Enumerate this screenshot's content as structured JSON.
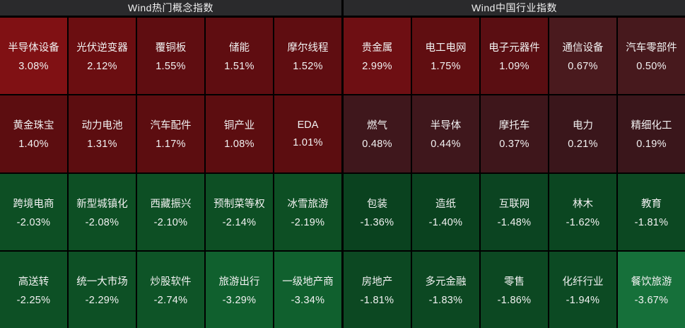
{
  "panels": {
    "left_title": "Wind热门概念指数",
    "right_title": "Wind中国行业指数"
  },
  "colors": {
    "background": "#000000",
    "header_bg": "#2a2a2c",
    "header_text": "#f0f0f0",
    "cell_text": "#f2f2f2",
    "gain_bright": "#801114",
    "loss_bright": "#16703a"
  },
  "chart_data": [
    {
      "type": "heatmap",
      "title": "Wind热门概念指数",
      "value_format": "percent_change",
      "rows": [
        [
          {
            "name": "半导体设备",
            "pct": "3.08%",
            "value": 3.08,
            "color": "#801114"
          },
          {
            "name": "光伏逆变器",
            "pct": "2.12%",
            "value": 2.12,
            "color": "#6b0e11"
          },
          {
            "name": "覆铜板",
            "pct": "1.55%",
            "value": 1.55,
            "color": "#5f0d11"
          },
          {
            "name": "储能",
            "pct": "1.51%",
            "value": 1.51,
            "color": "#5f0d11"
          },
          {
            "name": "摩尔线程",
            "pct": "1.52%",
            "value": 1.52,
            "color": "#5f0d11"
          }
        ],
        [
          {
            "name": "黄金珠宝",
            "pct": "1.40%",
            "value": 1.4,
            "color": "#5c0d10"
          },
          {
            "name": "动力电池",
            "pct": "1.31%",
            "value": 1.31,
            "color": "#5c0d10"
          },
          {
            "name": "汽车配件",
            "pct": "1.17%",
            "value": 1.17,
            "color": "#5c0d10"
          },
          {
            "name": "铜产业",
            "pct": "1.08%",
            "value": 1.08,
            "color": "#5c0d10"
          },
          {
            "name": "EDA",
            "pct": "1.01%",
            "value": 1.01,
            "color": "#5c0d10"
          }
        ],
        [
          {
            "name": "跨境电商",
            "pct": "-2.03%",
            "value": -2.03,
            "color": "#0d4f24"
          },
          {
            "name": "新型城镇化",
            "pct": "-2.08%",
            "value": -2.08,
            "color": "#0d4f24"
          },
          {
            "name": "西藏振兴",
            "pct": "-2.10%",
            "value": -2.1,
            "color": "#0d4f24"
          },
          {
            "name": "预制菜等权",
            "pct": "-2.14%",
            "value": -2.14,
            "color": "#0d4f24"
          },
          {
            "name": "冰雪旅游",
            "pct": "-2.19%",
            "value": -2.19,
            "color": "#0d4f24"
          }
        ],
        [
          {
            "name": "高送转",
            "pct": "-2.25%",
            "value": -2.25,
            "color": "#0d5025"
          },
          {
            "name": "统一大市场",
            "pct": "-2.29%",
            "value": -2.29,
            "color": "#0d5025"
          },
          {
            "name": "炒股软件",
            "pct": "-2.74%",
            "value": -2.74,
            "color": "#0e5427"
          },
          {
            "name": "旅游出行",
            "pct": "-3.29%",
            "value": -3.29,
            "color": "#10602e"
          },
          {
            "name": "一级地产商",
            "pct": "-3.34%",
            "value": -3.34,
            "color": "#10602e"
          }
        ]
      ]
    },
    {
      "type": "heatmap",
      "title": "Wind中国行业指数",
      "value_format": "percent_change",
      "rows": [
        [
          {
            "name": "贵金属",
            "pct": "2.99%",
            "value": 2.99,
            "color": "#6e0f13"
          },
          {
            "name": "电工电网",
            "pct": "1.75%",
            "value": 1.75,
            "color": "#600e11"
          },
          {
            "name": "电子元器件",
            "pct": "1.09%",
            "value": 1.09,
            "color": "#5a0e12"
          },
          {
            "name": "通信设备",
            "pct": "0.67%",
            "value": 0.67,
            "color": "#4a1a1e"
          },
          {
            "name": "汽车零部件",
            "pct": "0.50%",
            "value": 0.5,
            "color": "#47191d"
          }
        ],
        [
          {
            "name": "燃气",
            "pct": "0.48%",
            "value": 0.48,
            "color": "#3f171c"
          },
          {
            "name": "半导体",
            "pct": "0.44%",
            "value": 0.44,
            "color": "#3f171c"
          },
          {
            "name": "摩托车",
            "pct": "0.37%",
            "value": 0.37,
            "color": "#3e161b"
          },
          {
            "name": "电力",
            "pct": "0.21%",
            "value": 0.21,
            "color": "#3a161b"
          },
          {
            "name": "精细化工",
            "pct": "0.19%",
            "value": 0.19,
            "color": "#3a161b"
          }
        ],
        [
          {
            "name": "包装",
            "pct": "-1.36%",
            "value": -1.36,
            "color": "#0a421f"
          },
          {
            "name": "造纸",
            "pct": "-1.40%",
            "value": -1.4,
            "color": "#0a421f"
          },
          {
            "name": "互联网",
            "pct": "-1.48%",
            "value": -1.48,
            "color": "#0b4421"
          },
          {
            "name": "林木",
            "pct": "-1.62%",
            "value": -1.62,
            "color": "#0b4621"
          },
          {
            "name": "教育",
            "pct": "-1.81%",
            "value": -1.81,
            "color": "#0c4822"
          }
        ],
        [
          {
            "name": "房地产",
            "pct": "-1.81%",
            "value": -1.81,
            "color": "#0c4822"
          },
          {
            "name": "多元金融",
            "pct": "-1.83%",
            "value": -1.83,
            "color": "#0c4822"
          },
          {
            "name": "零售",
            "pct": "-1.86%",
            "value": -1.86,
            "color": "#0c4822"
          },
          {
            "name": "化纤行业",
            "pct": "-1.94%",
            "value": -1.94,
            "color": "#0c4a23"
          },
          {
            "name": "餐饮旅游",
            "pct": "-3.67%",
            "value": -3.67,
            "color": "#16703a"
          }
        ]
      ]
    }
  ]
}
